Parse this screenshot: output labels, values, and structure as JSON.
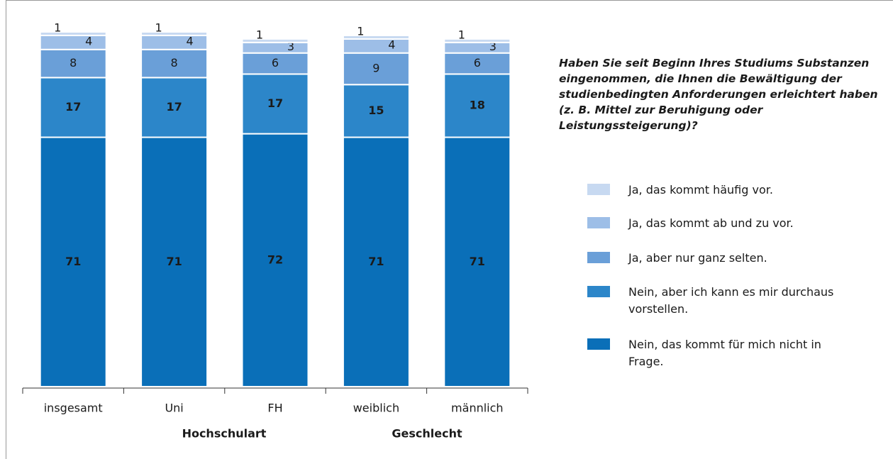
{
  "chart_data": {
    "type": "stacked_bar",
    "question": "Haben Sie seit Beginn Ihres Studiums Substanzen eingenommen, die Ihnen die Bewältigung der studienbedingten Anforderungen erleichtert haben (z. B. Mittel zur Beruhigung oder Leistungssteigerung)?",
    "categories": [
      "insgesamt",
      "Uni",
      "FH",
      "weiblich",
      "männlich"
    ],
    "groups": [
      "Hochschulart",
      "Geschlecht"
    ],
    "series": [
      {
        "name": "Nein, das kommt für mich nicht in Frage.",
        "color": "#0a6fb8",
        "label_color": "#ffffff",
        "values": [
          71,
          71,
          72,
          71,
          71
        ]
      },
      {
        "name": "Nein, aber ich kann es mir durchaus vorstellen.",
        "color": "#2c86c9",
        "label_color": "#ffffff",
        "values": [
          17,
          17,
          17,
          15,
          18
        ]
      },
      {
        "name": "Ja, aber nur ganz selten.",
        "color": "#6a9fd8",
        "label_color": "#1a1a1a",
        "values": [
          8,
          8,
          6,
          9,
          6
        ]
      },
      {
        "name": "Ja, das kommt ab und zu vor.",
        "color": "#9dbee7",
        "label_color": "#1a1a1a",
        "values": [
          4,
          4,
          3,
          4,
          3
        ]
      },
      {
        "name": "Ja, das kommt häufig vor.",
        "color": "#c7d9f1",
        "label_color": "#1a1a1a",
        "values": [
          1,
          1,
          1,
          1,
          1
        ]
      }
    ]
  }
}
